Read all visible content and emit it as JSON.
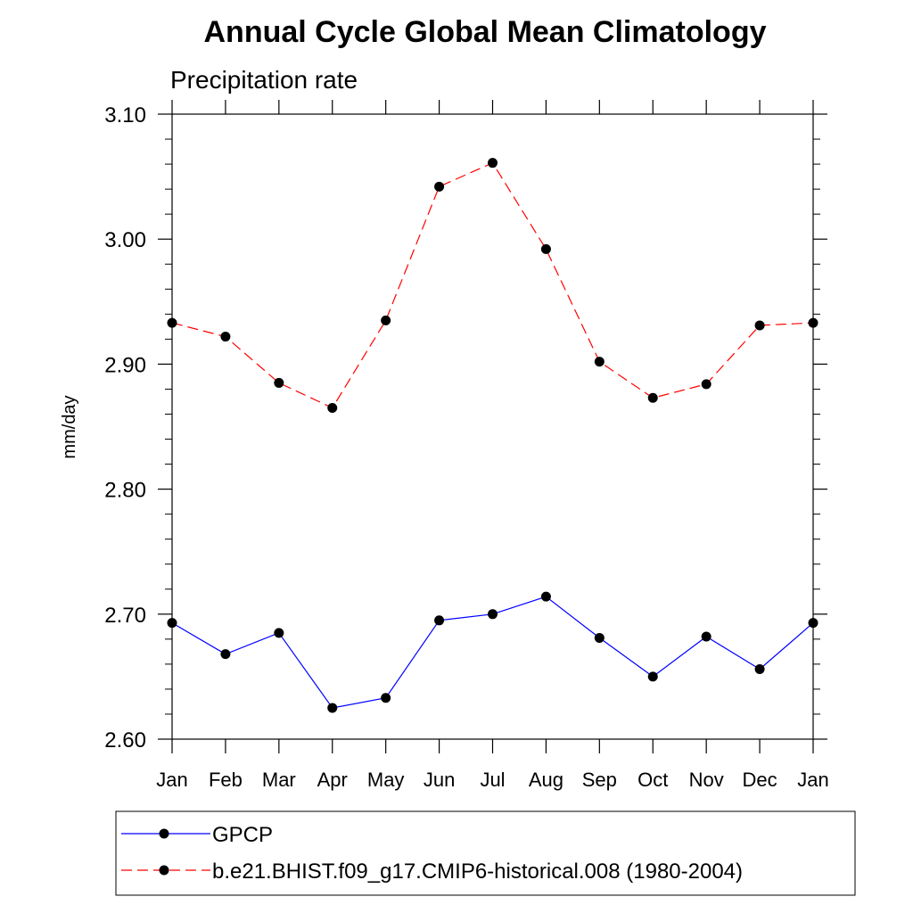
{
  "chart_data": {
    "type": "line",
    "title": "Annual Cycle Global Mean Climatology",
    "subtitle": "Precipitation rate",
    "ylabel": "mm/day",
    "xlabel": "",
    "categories": [
      "Jan",
      "Feb",
      "Mar",
      "Apr",
      "May",
      "Jun",
      "Jul",
      "Aug",
      "Sep",
      "Oct",
      "Nov",
      "Dec",
      "Jan"
    ],
    "ylim": [
      2.6,
      3.1
    ],
    "yticks": [
      "2.60",
      "2.70",
      "2.80",
      "2.90",
      "3.00",
      "3.10"
    ],
    "grid": false,
    "legend_position": "bottom",
    "series": [
      {
        "name": "GPCP",
        "color": "#0000ff",
        "line_style": "solid",
        "marker": "filled-circle",
        "values": [
          2.693,
          2.668,
          2.685,
          2.625,
          2.633,
          2.695,
          2.7,
          2.714,
          2.681,
          2.65,
          2.682,
          2.656,
          2.693
        ]
      },
      {
        "name": "b.e21.BHIST.f09_g17.CMIP6-historical.008 (1980-2004)",
        "color": "#ff0000",
        "line_style": "dashed",
        "marker": "filled-circle",
        "values": [
          2.933,
          2.922,
          2.885,
          2.865,
          2.935,
          3.042,
          3.061,
          2.992,
          2.902,
          2.873,
          2.884,
          2.931,
          2.933
        ]
      }
    ]
  }
}
